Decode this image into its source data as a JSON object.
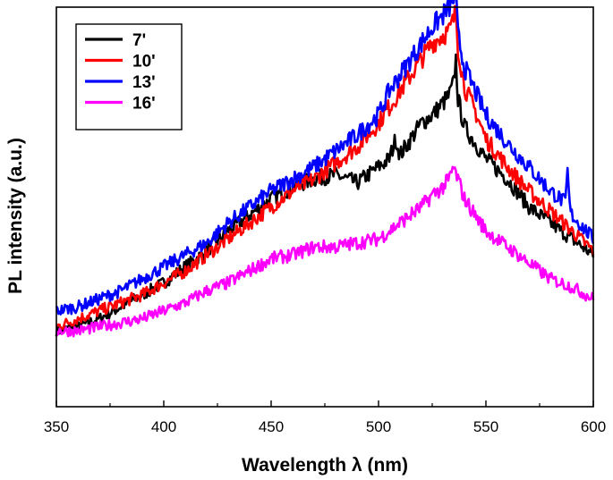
{
  "chart_data": {
    "type": "line",
    "title": "",
    "xlabel": "Wavelength λ (nm)",
    "ylabel": "PL intensity (a.u.)",
    "xlim": [
      350,
      600
    ],
    "ylim": [
      0,
      1
    ],
    "xticks": [
      350,
      400,
      450,
      500,
      550,
      600
    ],
    "xtick_labels": [
      "350",
      "400",
      "450",
      "500",
      "550",
      "600"
    ],
    "yticks_shown": false,
    "legend_position": "top-left",
    "series": [
      {
        "name": "7'",
        "color": "#000000",
        "x": [
          350,
          360,
          370,
          380,
          390,
          400,
          410,
          420,
          430,
          440,
          450,
          460,
          470,
          480,
          490,
          500,
          505,
          508,
          510,
          515,
          520,
          525,
          530,
          533,
          535,
          536,
          537,
          540,
          545,
          550,
          560,
          570,
          580,
          590,
          600
        ],
        "y": [
          0.19,
          0.2,
          0.22,
          0.25,
          0.28,
          0.31,
          0.35,
          0.39,
          0.44,
          0.48,
          0.52,
          0.55,
          0.57,
          0.58,
          0.56,
          0.6,
          0.62,
          0.67,
          0.63,
          0.67,
          0.71,
          0.73,
          0.76,
          0.78,
          0.81,
          0.87,
          0.77,
          0.7,
          0.66,
          0.62,
          0.57,
          0.5,
          0.46,
          0.42,
          0.38
        ]
      },
      {
        "name": "10'",
        "color": "#ff0000",
        "x": [
          350,
          360,
          370,
          380,
          390,
          400,
          410,
          420,
          430,
          440,
          450,
          460,
          470,
          480,
          490,
          500,
          505,
          510,
          515,
          520,
          525,
          530,
          533,
          535,
          536,
          537,
          540,
          545,
          550,
          560,
          570,
          580,
          590,
          600
        ],
        "y": [
          0.2,
          0.22,
          0.24,
          0.26,
          0.28,
          0.31,
          0.34,
          0.38,
          0.42,
          0.46,
          0.5,
          0.54,
          0.57,
          0.61,
          0.65,
          0.71,
          0.75,
          0.79,
          0.83,
          0.87,
          0.91,
          0.93,
          0.94,
          0.97,
          0.99,
          0.9,
          0.8,
          0.74,
          0.67,
          0.6,
          0.54,
          0.49,
          0.44,
          0.39
        ]
      },
      {
        "name": "13'",
        "color": "#0000ff",
        "x": [
          350,
          360,
          370,
          380,
          390,
          400,
          410,
          420,
          430,
          440,
          450,
          460,
          470,
          480,
          490,
          500,
          505,
          510,
          515,
          520,
          525,
          530,
          533,
          535,
          536,
          537,
          540,
          545,
          550,
          560,
          570,
          580,
          587,
          588,
          589,
          590,
          600
        ],
        "y": [
          0.24,
          0.25,
          0.27,
          0.29,
          0.32,
          0.35,
          0.38,
          0.41,
          0.46,
          0.5,
          0.54,
          0.57,
          0.6,
          0.64,
          0.68,
          0.73,
          0.79,
          0.83,
          0.87,
          0.91,
          0.95,
          0.98,
          1.0,
          1.02,
          1.03,
          0.93,
          0.85,
          0.79,
          0.73,
          0.66,
          0.6,
          0.54,
          0.51,
          0.59,
          0.5,
          0.48,
          0.42
        ]
      },
      {
        "name": "16'",
        "color": "#ff00ff",
        "x": [
          350,
          360,
          370,
          380,
          390,
          400,
          410,
          420,
          430,
          440,
          450,
          460,
          470,
          480,
          490,
          500,
          505,
          510,
          515,
          520,
          525,
          530,
          533,
          535,
          536,
          537,
          540,
          545,
          550,
          560,
          570,
          580,
          590,
          600
        ],
        "y": [
          0.19,
          0.19,
          0.2,
          0.21,
          0.22,
          0.24,
          0.26,
          0.29,
          0.31,
          0.34,
          0.37,
          0.38,
          0.4,
          0.4,
          0.41,
          0.42,
          0.44,
          0.46,
          0.48,
          0.5,
          0.53,
          0.55,
          0.57,
          0.6,
          0.58,
          0.57,
          0.52,
          0.48,
          0.44,
          0.4,
          0.36,
          0.32,
          0.3,
          0.27
        ]
      }
    ]
  }
}
